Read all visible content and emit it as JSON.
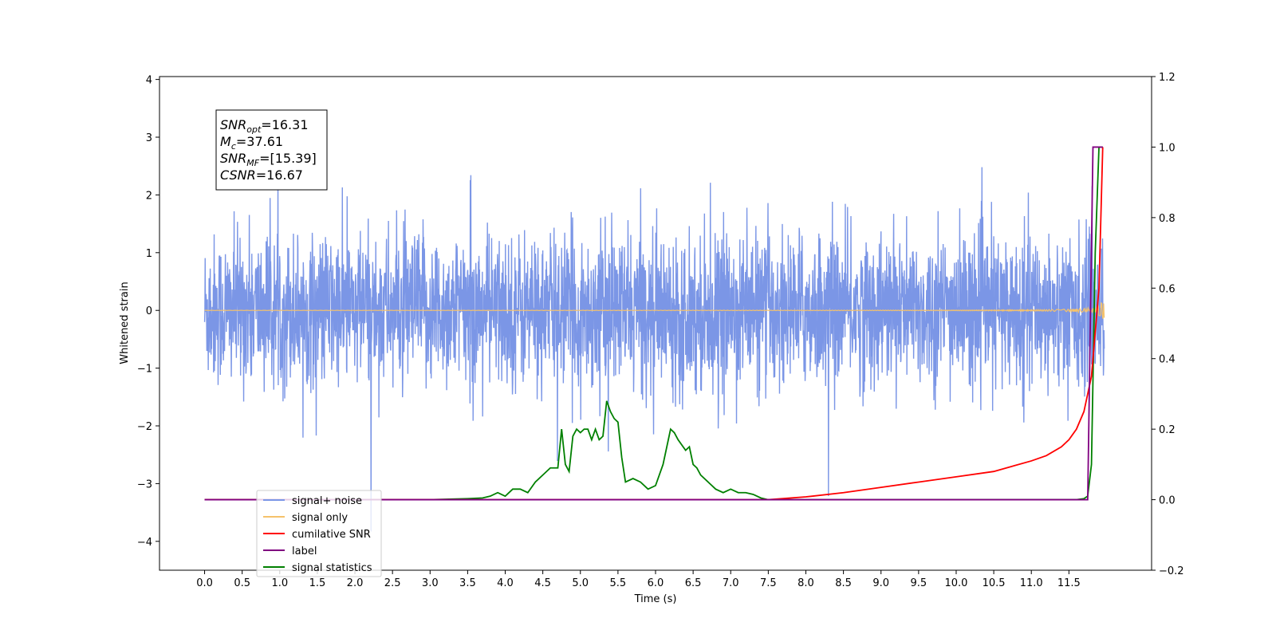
{
  "chart_data": {
    "type": "line",
    "xlabel": "Time (s)",
    "ylabel": "Whitened strain",
    "xlim": [
      -0.6,
      12.6
    ],
    "ylim_left": [
      -4.5,
      4.05
    ],
    "ylim_right": [
      -0.2,
      1.2
    ],
    "x_ticks": [
      "0.0",
      "0.5",
      "1.0",
      "1.5",
      "2.0",
      "2.5",
      "3.0",
      "3.5",
      "4.0",
      "4.5",
      "5.0",
      "5.5",
      "6.0",
      "6.5",
      "7.0",
      "7.5",
      "8.0",
      "8.5",
      "9.0",
      "9.5",
      "10.0",
      "10.5",
      "11.0",
      "11.5"
    ],
    "x_tick_values": [
      0,
      0.5,
      1,
      1.5,
      2,
      2.5,
      3,
      3.5,
      4,
      4.5,
      5,
      5.5,
      6,
      6.5,
      7,
      7.5,
      8,
      8.5,
      9,
      9.5,
      10,
      10.5,
      11,
      11.5
    ],
    "y_left_ticks": [
      "−4",
      "−3",
      "−2",
      "−1",
      "0",
      "1",
      "2",
      "3",
      "4"
    ],
    "y_left_tick_values": [
      -4,
      -3,
      -2,
      -1,
      0,
      1,
      2,
      3,
      4
    ],
    "y_right_ticks": [
      "−0.2",
      "0.0",
      "0.2",
      "0.4",
      "0.6",
      "0.8",
      "1.0",
      "1.2"
    ],
    "y_right_tick_values": [
      -0.2,
      0,
      0.2,
      0.4,
      0.6,
      0.8,
      1.0,
      1.2
    ],
    "annotation": {
      "lines": [
        {
          "base": "SNR",
          "sub": "opt",
          "rest": "=16.31"
        },
        {
          "base": "M",
          "sub": "c",
          "rest": "=37.61"
        },
        {
          "base": "SNR",
          "sub": "MF",
          "rest": "=[15.39]"
        },
        {
          "base": "CSNR",
          "sub": "",
          "rest": "=16.67"
        }
      ]
    },
    "legend": {
      "placement": "lower-left",
      "entries": [
        {
          "label": "signal+ noise",
          "color": "#7b96e6"
        },
        {
          "label": "signal only",
          "color": "#f5c26b"
        },
        {
          "label": "cumilative SNR",
          "color": "#ff0000"
        },
        {
          "label": "label",
          "color": "#800080"
        },
        {
          "label": "signal statistics",
          "color": "#008000"
        }
      ]
    },
    "series": [
      {
        "name": "signal statistics",
        "axis": "right",
        "color": "#008000",
        "x": [
          0,
          1,
          2,
          3,
          3.5,
          3.7,
          3.8,
          3.9,
          4.0,
          4.1,
          4.2,
          4.3,
          4.4,
          4.5,
          4.6,
          4.7,
          4.75,
          4.8,
          4.85,
          4.9,
          4.95,
          5.0,
          5.05,
          5.1,
          5.15,
          5.2,
          5.25,
          5.3,
          5.35,
          5.4,
          5.45,
          5.5,
          5.55,
          5.6,
          5.7,
          5.8,
          5.9,
          6.0,
          6.1,
          6.2,
          6.25,
          6.3,
          6.4,
          6.45,
          6.5,
          6.55,
          6.6,
          6.7,
          6.8,
          6.9,
          7.0,
          7.1,
          7.2,
          7.3,
          7.4,
          7.5,
          8,
          9,
          10,
          11,
          11.5,
          11.6,
          11.7,
          11.75,
          11.8,
          11.85,
          11.9,
          11.95
        ],
        "y": [
          0,
          0,
          0,
          0,
          0.003,
          0.005,
          0.01,
          0.02,
          0.01,
          0.03,
          0.03,
          0.02,
          0.05,
          0.07,
          0.09,
          0.09,
          0.2,
          0.1,
          0.08,
          0.18,
          0.2,
          0.19,
          0.2,
          0.2,
          0.17,
          0.2,
          0.17,
          0.18,
          0.28,
          0.25,
          0.23,
          0.22,
          0.12,
          0.05,
          0.06,
          0.05,
          0.03,
          0.04,
          0.1,
          0.2,
          0.19,
          0.17,
          0.14,
          0.15,
          0.1,
          0.09,
          0.07,
          0.05,
          0.03,
          0.02,
          0.03,
          0.02,
          0.02,
          0.015,
          0.005,
          0,
          0,
          0,
          0,
          0,
          0,
          0,
          0.003,
          0.01,
          0.1,
          0.7,
          1.0,
          1.0
        ]
      },
      {
        "name": "cumilative SNR",
        "axis": "right",
        "color": "#ff0000",
        "x": [
          0,
          7.5,
          8,
          8.5,
          9,
          9.5,
          10,
          10.5,
          11,
          11.2,
          11.4,
          11.5,
          11.6,
          11.7,
          11.8,
          11.9,
          11.95
        ],
        "y": [
          0,
          0,
          0.008,
          0.02,
          0.035,
          0.05,
          0.065,
          0.08,
          0.11,
          0.125,
          0.15,
          0.17,
          0.2,
          0.25,
          0.35,
          0.6,
          1.0
        ]
      },
      {
        "name": "label",
        "axis": "right",
        "color": "#800080",
        "x": [
          0,
          11.75,
          11.82,
          11.83,
          11.9,
          11.91,
          11.95
        ],
        "y": [
          0,
          0,
          1.0,
          1.0,
          1.0,
          1.0,
          1.0
        ]
      }
    ]
  }
}
